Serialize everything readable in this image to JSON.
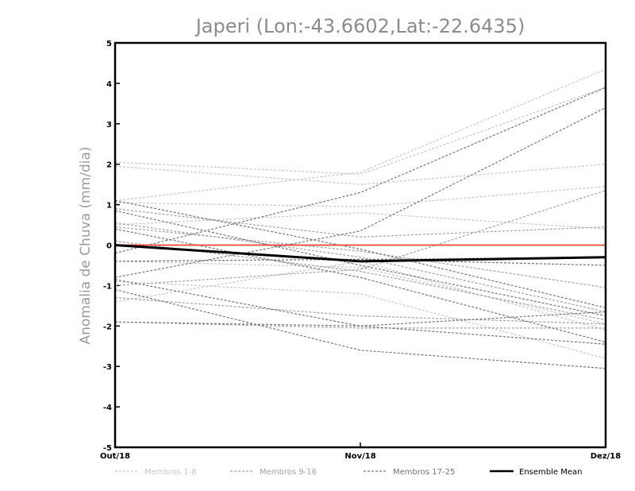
{
  "chart_data": {
    "type": "line",
    "title": "Japeri (Lon:-43.6602,Lat:-22.6435)",
    "ylabel": "Anomalia de Chuva (mm/dia)",
    "xlabel": "",
    "categories": [
      "Out/18",
      "Nov/18",
      "Dez/18"
    ],
    "ylim": [
      -5,
      5
    ],
    "yticks": [
      "5",
      "4",
      "3",
      "2",
      "1",
      "0",
      "-1",
      "-2",
      "-3",
      "-4",
      "-5"
    ],
    "zero_line_color": "#e8463a",
    "grid": false,
    "legend_position": "bottom",
    "groups": [
      {
        "name": "Membros 1-8",
        "color": "#c8c8c8",
        "dash": "3,2"
      },
      {
        "name": "Membros 9-16",
        "color": "#a3a3a3",
        "dash": "3,2"
      },
      {
        "name": "Membros 17-25",
        "color": "#777777",
        "dash": "3,2"
      },
      {
        "name": "Ensemble Mean",
        "color": "#000000",
        "dash": ""
      }
    ],
    "series": [
      {
        "group": 0,
        "values": [
          2.05,
          1.75,
          3.9
        ]
      },
      {
        "group": 0,
        "values": [
          1.95,
          1.5,
          2.0
        ]
      },
      {
        "group": 0,
        "values": [
          1.1,
          1.8,
          4.35
        ]
      },
      {
        "group": 0,
        "values": [
          1.05,
          0.95,
          1.45
        ]
      },
      {
        "group": 0,
        "values": [
          0.5,
          0.8,
          0.4
        ]
      },
      {
        "group": 0,
        "values": [
          -0.4,
          -0.55,
          -1.95
        ]
      },
      {
        "group": 0,
        "values": [
          -0.9,
          -1.2,
          -2.8
        ]
      },
      {
        "group": 0,
        "values": [
          -1.4,
          -0.4,
          -2.1
        ]
      },
      {
        "group": 1,
        "values": [
          0.9,
          0.2,
          0.45
        ]
      },
      {
        "group": 1,
        "values": [
          0.55,
          -0.3,
          -1.65
        ]
      },
      {
        "group": 1,
        "values": [
          0.45,
          -0.15,
          -1.05
        ]
      },
      {
        "group": 1,
        "values": [
          0.1,
          -0.65,
          -1.85
        ]
      },
      {
        "group": 1,
        "values": [
          -0.4,
          -0.35,
          -0.3
        ]
      },
      {
        "group": 1,
        "values": [
          -1.0,
          -0.6,
          1.35
        ]
      },
      {
        "group": 1,
        "values": [
          -1.3,
          -1.75,
          -1.95
        ]
      },
      {
        "group": 1,
        "values": [
          -1.9,
          -2.05,
          -2.05
        ]
      },
      {
        "group": 2,
        "values": [
          1.1,
          -0.1,
          -1.55
        ]
      },
      {
        "group": 2,
        "values": [
          0.85,
          -0.5,
          -1.75
        ]
      },
      {
        "group": 2,
        "values": [
          0.4,
          -0.8,
          -2.4
        ]
      },
      {
        "group": 2,
        "values": [
          -0.2,
          1.3,
          3.9
        ]
      },
      {
        "group": 2,
        "values": [
          -0.4,
          -0.35,
          -0.5
        ]
      },
      {
        "group": 2,
        "values": [
          -0.8,
          0.35,
          3.4
        ]
      },
      {
        "group": 2,
        "values": [
          -0.85,
          -2.0,
          -2.45
        ]
      },
      {
        "group": 2,
        "values": [
          -1.1,
          -2.6,
          -3.05
        ]
      },
      {
        "group": 2,
        "values": [
          -1.9,
          -2.0,
          -1.65
        ]
      }
    ],
    "ensemble_mean": [
      0.0,
      -0.4,
      -0.3
    ]
  }
}
